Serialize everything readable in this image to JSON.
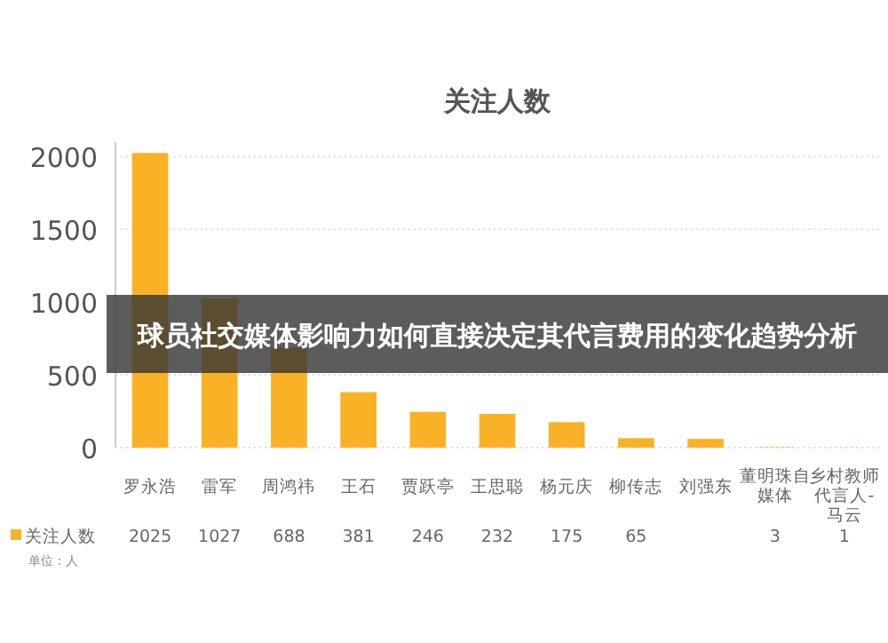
{
  "chart_data": {
    "type": "bar",
    "title": "关注人数",
    "categories": [
      "罗永浩",
      "雷军",
      "周鸿祎",
      "王石",
      "贾跃亭",
      "王思聪",
      "杨元庆",
      "柳传志",
      "刘强东",
      "董明珠自媒体",
      "乡村教师代言人-马云"
    ],
    "series": [
      {
        "name": "关注人数",
        "color": "#f9b226",
        "values": [
          2025,
          1027,
          688,
          381,
          246,
          232,
          175,
          65,
          60,
          3,
          1
        ],
        "value_labels": [
          "2025",
          "1027",
          "688",
          "381",
          "246",
          "232",
          "175",
          "65",
          null,
          "3",
          "1"
        ]
      }
    ],
    "ylim": [
      0,
      2100
    ],
    "yticks": [
      0,
      500,
      1000,
      1500,
      2000
    ],
    "grid": "y",
    "legend": "bottom left",
    "annotations": [
      "单位：人",
      "球员社交媒体影响力如何直接决定其代言费用的变化趋势分析"
    ]
  }
}
